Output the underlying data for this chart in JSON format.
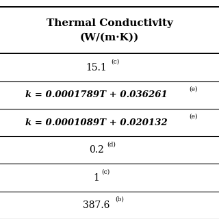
{
  "header_line1": "Thermal Conductivity",
  "header_line2": "(W/(m·K))",
  "rows": [
    {
      "main": "15.1",
      "sup": "(c)",
      "is_eq": false
    },
    {
      "main": "k = 0.0001789T + 0.036261",
      "sup": "(e)",
      "is_eq": true
    },
    {
      "main": "k = 0.0001089T + 0.020132",
      "sup": "(e)",
      "is_eq": true
    },
    {
      "main": "0.2",
      "sup": "(d)",
      "is_eq": false
    },
    {
      "main": "1",
      "sup": "(c)",
      "is_eq": false
    },
    {
      "main": "387.6",
      "sup": "(b)",
      "is_eq": false
    }
  ],
  "bg_color": "#ffffff",
  "text_color": "#000000",
  "line_color": "#000000",
  "header_fontsize": 11.0,
  "row_fontsize": 10.0,
  "eq_fontsize": 9.5,
  "sup_fontsize": 6.5,
  "fig_width": 3.2,
  "fig_height": 3.2,
  "dpi": 100
}
